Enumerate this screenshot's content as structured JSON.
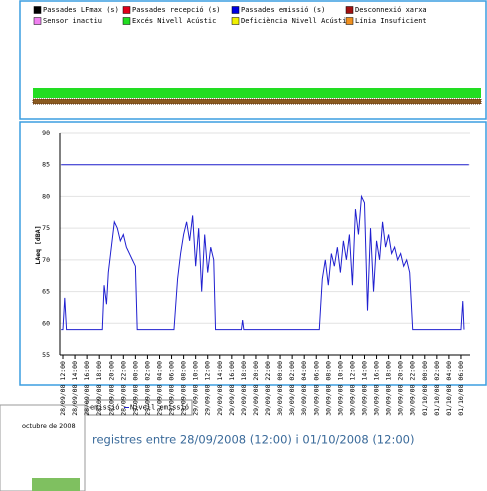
{
  "status_legend": [
    {
      "label": "Passades LFmax (s)",
      "color": "#000000"
    },
    {
      "label": "Passades recepció (s)",
      "color": "#e0001a"
    },
    {
      "label": "Passades emissió (s)",
      "color": "#0000e0"
    },
    {
      "label": "Desconnexió xarxa",
      "color": "#a01010"
    },
    {
      "label": "Sensor inactiu",
      "color": "#f080f0"
    },
    {
      "label": "Excés Nivell Acústic",
      "color": "#22dd22"
    },
    {
      "label": "Deficiència Nivell Acústic",
      "color": "#f0f000"
    },
    {
      "label": "Línia Insuficient",
      "color": "#f09020"
    }
  ],
  "chart_data": {
    "type": "line",
    "ylabel": "LAeq [dBA]",
    "xlim": [
      -0.5,
      67.5
    ],
    "ylim": [
      55,
      90
    ],
    "yticks": [
      55,
      60,
      65,
      70,
      75,
      80,
      85,
      90
    ],
    "grid": true,
    "xticks": [
      {
        "value": 0,
        "label": "28/09/08 12:00"
      },
      {
        "value": 2,
        "label": "28/09/08 14:00"
      },
      {
        "value": 4,
        "label": "28/09/08 16:00"
      },
      {
        "value": 6,
        "label": "28/09/08 18:00"
      },
      {
        "value": 8,
        "label": "28/09/08 20:00"
      },
      {
        "value": 10,
        "label": "28/09/08 22:00"
      },
      {
        "value": 12,
        "label": "29/09/08 00:00"
      },
      {
        "value": 14,
        "label": "29/09/08 02:00"
      },
      {
        "value": 16,
        "label": "29/09/08 04:00"
      },
      {
        "value": 18,
        "label": "29/09/08 06:00"
      },
      {
        "value": 20,
        "label": "29/09/08 08:00"
      },
      {
        "value": 22,
        "label": "29/09/08 10:00"
      },
      {
        "value": 24,
        "label": "29/09/08 12:00"
      },
      {
        "value": 26,
        "label": "29/09/08 14:00"
      },
      {
        "value": 28,
        "label": "29/09/08 16:00"
      },
      {
        "value": 30,
        "label": "29/09/08 18:00"
      },
      {
        "value": 32,
        "label": "29/09/08 20:00"
      },
      {
        "value": 34,
        "label": "29/09/08 22:00"
      },
      {
        "value": 36,
        "label": "30/09/08 00:00"
      },
      {
        "value": 38,
        "label": "30/09/08 02:00"
      },
      {
        "value": 40,
        "label": "30/09/08 04:00"
      },
      {
        "value": 42,
        "label": "30/09/08 06:00"
      },
      {
        "value": 44,
        "label": "30/09/08 08:00"
      },
      {
        "value": 46,
        "label": "30/09/08 10:00"
      },
      {
        "value": 48,
        "label": "30/09/08 12:00"
      },
      {
        "value": 50,
        "label": "30/09/08 14:00"
      },
      {
        "value": 52,
        "label": "30/09/08 16:00"
      },
      {
        "value": 54,
        "label": "30/09/08 18:00"
      },
      {
        "value": 56,
        "label": "30/09/08 20:00"
      },
      {
        "value": 58,
        "label": "30/09/08 22:00"
      },
      {
        "value": 60,
        "label": "01/10/08 00:00"
      },
      {
        "value": 62,
        "label": "01/10/08 02:00"
      },
      {
        "value": 64,
        "label": "01/10/08 04:00"
      },
      {
        "value": 66,
        "label": "01/10/08 06:00"
      }
    ],
    "series": [
      {
        "name": "emissió",
        "color": "#2020d0",
        "x": [
          -0.3,
          0,
          0.3,
          0.6,
          6.5,
          6.8,
          7.2,
          7.5,
          8,
          8.5,
          9,
          9.5,
          10,
          10.5,
          11,
          11.5,
          12,
          12.3,
          18.4,
          19,
          19.5,
          20,
          20.5,
          21,
          21.5,
          22,
          22.5,
          23,
          23.5,
          24,
          24.5,
          25,
          25.3,
          29.6,
          29.8,
          30,
          42.5,
          43,
          43.5,
          44,
          44.5,
          45,
          45.5,
          46,
          46.5,
          47,
          47.5,
          48,
          48.5,
          49,
          49.5,
          50,
          50.5,
          51,
          51.5,
          52,
          52.5,
          53,
          53.5,
          54,
          54.5,
          55,
          55.5,
          56,
          56.5,
          57,
          57.5,
          58,
          66,
          66.3,
          66.5
        ],
        "values": [
          59,
          59,
          64,
          59,
          59,
          66,
          63,
          68,
          72,
          76,
          75,
          73,
          74,
          72,
          71,
          70,
          69,
          59,
          59,
          67,
          71,
          74,
          76,
          73,
          77,
          69,
          75,
          65,
          74,
          68,
          72,
          70,
          59,
          59,
          60.5,
          59,
          59,
          67,
          70,
          66,
          71,
          69,
          72,
          68,
          73,
          70,
          74,
          66,
          78,
          74,
          80,
          79,
          62,
          75,
          65,
          73,
          70,
          76,
          72,
          74,
          71,
          72,
          70,
          71,
          69,
          70,
          68,
          59,
          59,
          63.5,
          59
        ]
      },
      {
        "name": "Nivell emissió",
        "color": "#2020d0",
        "x": [
          -0.3,
          67.3
        ],
        "values": [
          85,
          85
        ]
      }
    ]
  },
  "bottom": {
    "window_title": "octubre de 2008",
    "summary": "registres entre 28/09/2008 (12:00) i 01/10/2008 (12:00)"
  }
}
